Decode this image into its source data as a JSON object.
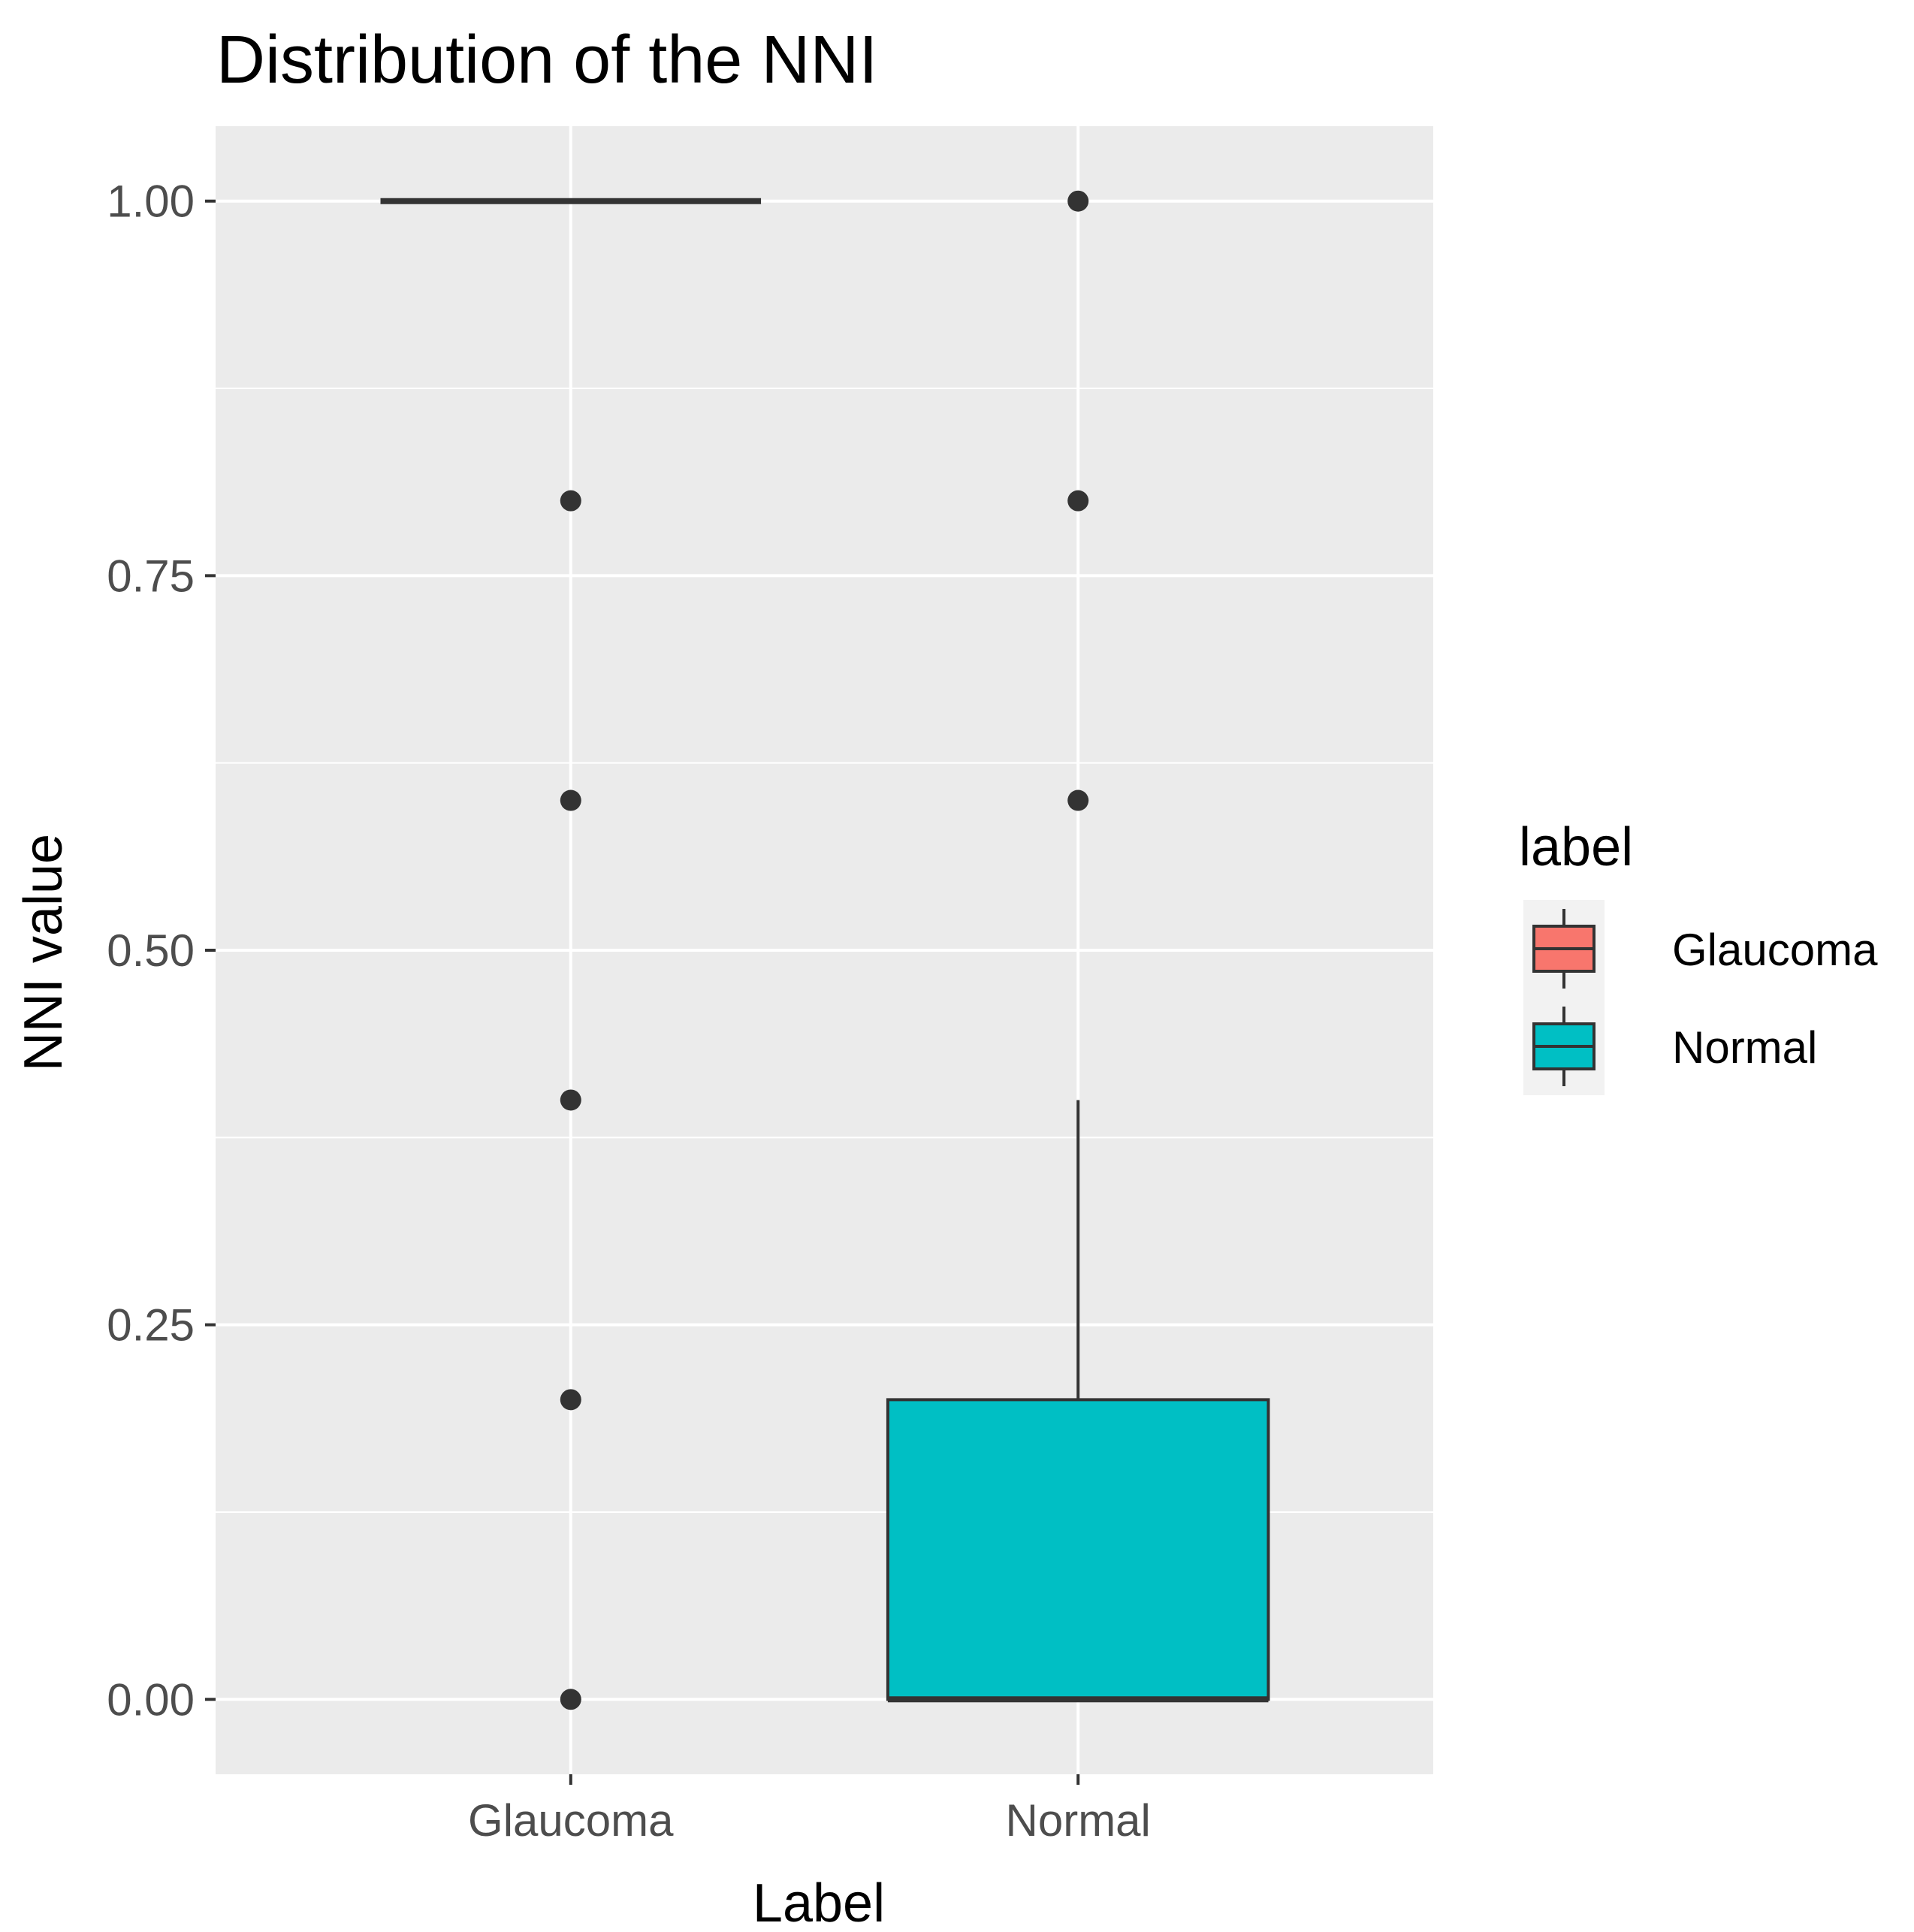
{
  "chart_data": {
    "type": "box",
    "title": "Distribution of the NNI",
    "xlabel": "Label",
    "ylabel": "NNI value",
    "categories": [
      "Glaucoma",
      "Normal"
    ],
    "ylim": [
      -0.05,
      1.05
    ],
    "yticks": [
      0.0,
      0.25,
      0.5,
      0.75,
      1.0
    ],
    "ytick_labels": [
      "0.00",
      "0.25",
      "0.50",
      "0.75",
      "1.00"
    ],
    "grid": true,
    "legend": {
      "title": "label",
      "position": "right",
      "entries": [
        {
          "name": "Glaucoma",
          "color": "#F8766D"
        },
        {
          "name": "Normal",
          "color": "#00BFC4"
        }
      ]
    },
    "series": [
      {
        "name": "Glaucoma",
        "color": "#F8766D",
        "min": 1.0,
        "q1": 1.0,
        "median": 1.0,
        "q3": 1.0,
        "max": 1.0,
        "outliers": [
          0.0,
          0.2,
          0.4,
          0.6,
          0.8
        ]
      },
      {
        "name": "Normal",
        "color": "#00BFC4",
        "min": 0.0,
        "q1": 0.0,
        "median": 0.0,
        "q3": 0.2,
        "max": 0.4,
        "outliers": [
          0.6,
          0.8,
          1.0
        ]
      }
    ],
    "colors": {
      "panel_bg": "#EBEBEB",
      "grid": "#FFFFFF",
      "box_outline": "#333333",
      "tick_text": "#4D4D4D"
    }
  }
}
